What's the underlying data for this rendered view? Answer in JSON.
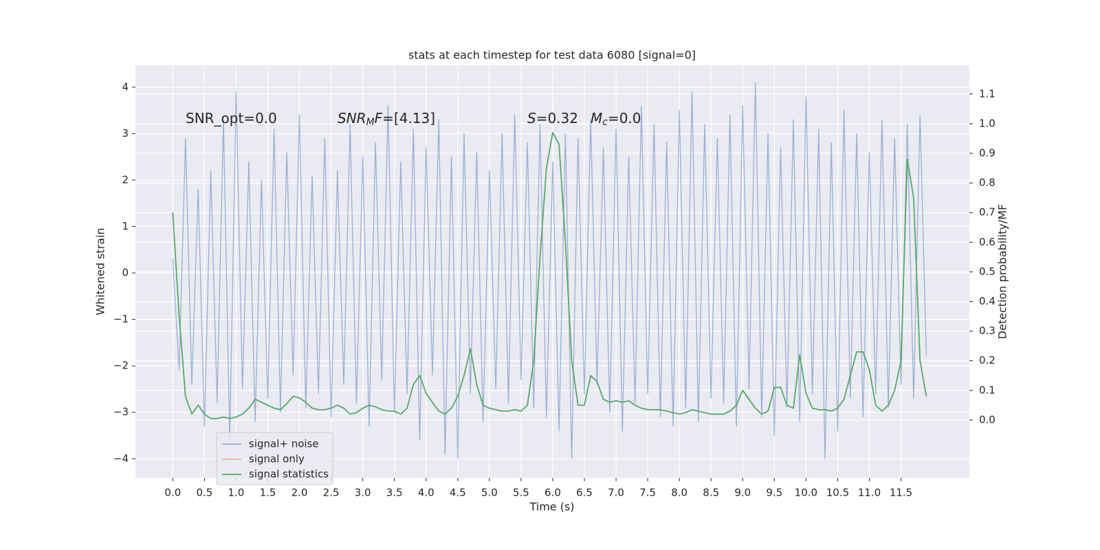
{
  "chart_data": {
    "type": "line",
    "title": "stats at each timestep for test data 6080 [signal=0]",
    "x_label": "Time (s)",
    "y_label": "Whitened strain",
    "y2_label": "Detection probability/MF",
    "annotations": [
      [
        "SNR_opt=0.0"
      ],
      [
        "SNR",
        "M",
        "F",
        "=[4.13]"
      ],
      [
        "S",
        "=0.32"
      ],
      [
        "M",
        "c",
        "=0.0"
      ]
    ],
    "grid": true,
    "legend": "lower left",
    "xlim": [
      -0.59,
      12.58
    ],
    "ylim": [
      -4.41,
      4.47
    ],
    "y2lim": [
      -0.195,
      1.197
    ],
    "xticks": [
      {
        "value": 0,
        "label": "0.0"
      },
      0.5,
      {
        "value": 1,
        "label": "1.0"
      },
      1.5,
      {
        "value": 2,
        "label": "2.0"
      },
      2.5,
      {
        "value": 3,
        "label": "3.0"
      },
      3.5,
      {
        "value": 4,
        "label": "4.0"
      },
      4.5,
      {
        "value": 5,
        "label": "5.0"
      },
      5.5,
      {
        "value": 6,
        "label": "6.0"
      },
      6.5,
      {
        "value": 7,
        "label": "7.0"
      },
      7.5,
      {
        "value": 8,
        "label": "8.0"
      },
      8.5,
      {
        "value": 9,
        "label": "9.0"
      },
      9.5,
      {
        "value": 10,
        "label": "10.0"
      },
      10.5,
      {
        "value": 11,
        "label": "11.0"
      },
      11.5
    ],
    "yticks": [
      {
        "value": -4,
        "label": "−4"
      },
      {
        "value": -3,
        "label": "−3"
      },
      {
        "value": -2,
        "label": "−2"
      },
      {
        "value": -1,
        "label": "−1"
      },
      0,
      1,
      2,
      3,
      4
    ],
    "y2ticks": [
      {
        "value": 0,
        "label": "0.0"
      },
      0.1,
      0.2,
      0.3,
      0.4,
      0.5,
      0.6,
      0.7,
      0.8,
      0.9,
      {
        "value": 1,
        "label": "1.0"
      },
      1.1
    ],
    "x": [
      0.0,
      0.1,
      0.2,
      0.3,
      0.4,
      0.5,
      0.6,
      0.7,
      0.8,
      0.9,
      1.0,
      1.1,
      1.2,
      1.3,
      1.4,
      1.5,
      1.6,
      1.7,
      1.8,
      1.9,
      2.0,
      2.1,
      2.2,
      2.3,
      2.4,
      2.5,
      2.6,
      2.7,
      2.8,
      2.9,
      3.0,
      3.1,
      3.2,
      3.3,
      3.4,
      3.5,
      3.6,
      3.7,
      3.8,
      3.9,
      4.0,
      4.1,
      4.2,
      4.3,
      4.4,
      4.5,
      4.6,
      4.7,
      4.8,
      4.9,
      5.0,
      5.1,
      5.2,
      5.3,
      5.4,
      5.5,
      5.6,
      5.7,
      5.8,
      5.9,
      6.0,
      6.1,
      6.2,
      6.3,
      6.4,
      6.5,
      6.6,
      6.7,
      6.8,
      6.9,
      7.0,
      7.1,
      7.2,
      7.3,
      7.4,
      7.5,
      7.6,
      7.7,
      7.8,
      7.9,
      8.0,
      8.1,
      8.2,
      8.3,
      8.4,
      8.5,
      8.6,
      8.7,
      8.8,
      8.9,
      9.0,
      9.1,
      9.2,
      9.3,
      9.4,
      9.5,
      9.6,
      9.7,
      9.8,
      9.9,
      10.0,
      10.1,
      10.2,
      10.3,
      10.4,
      10.5,
      10.6,
      10.7,
      10.8,
      10.9,
      11.0,
      11.1,
      11.2,
      11.3,
      11.4,
      11.5,
      11.6,
      11.7,
      11.8,
      11.9
    ],
    "series": [
      {
        "name": "signal+ noise",
        "color": "#4c72b0",
        "alpha": 0.5,
        "axis": "y",
        "values": [
          0.3,
          -2.1,
          2.9,
          -2.4,
          1.8,
          -3.3,
          2.2,
          -2.8,
          3.3,
          -3.6,
          3.9,
          -2.5,
          2.4,
          -3.2,
          2.0,
          -2.7,
          3.1,
          -3.0,
          2.6,
          -2.2,
          3.4,
          -2.9,
          2.1,
          -2.6,
          2.9,
          -3.1,
          2.2,
          -2.4,
          3.2,
          -2.8,
          2.5,
          -3.3,
          2.8,
          -2.3,
          3.6,
          -3.0,
          2.4,
          -2.6,
          3.1,
          -3.6,
          2.7,
          -2.2,
          3.3,
          -3.9,
          2.5,
          -4.0,
          3.0,
          -2.6,
          2.6,
          -3.2,
          2.2,
          -2.5,
          3.0,
          -2.8,
          3.4,
          -2.3,
          2.8,
          -2.9,
          3.2,
          -3.1,
          2.4,
          -3.4,
          3.0,
          -4.0,
          2.9,
          -2.6,
          3.3,
          -2.4,
          2.7,
          -3.0,
          3.1,
          -3.4,
          2.5,
          -2.8,
          3.6,
          -2.6,
          3.2,
          -3.1,
          2.8,
          -3.3,
          3.5,
          -2.9,
          3.9,
          -3.2,
          3.2,
          -2.7,
          2.9,
          -2.8,
          3.4,
          -3.3,
          3.6,
          -2.5,
          4.1,
          -3.1,
          3.0,
          -3.5,
          2.7,
          -2.9,
          3.3,
          -3.2,
          3.8,
          -2.6,
          3.1,
          -4.0,
          2.8,
          -3.4,
          3.5,
          -2.7,
          3.0,
          -3.1,
          2.6,
          -2.6,
          3.3,
          -2.9,
          2.9,
          -2.4,
          3.2,
          -2.7,
          3.4,
          -1.8
        ]
      },
      {
        "name": "signal only",
        "color": "#dd8452",
        "alpha": 0.5,
        "axis": "y",
        "values": [
          null,
          null,
          null,
          null,
          null,
          null,
          null,
          null,
          null,
          null,
          null,
          null,
          null,
          null,
          null,
          null,
          null,
          null,
          null,
          null,
          null,
          null,
          null,
          null,
          null,
          null,
          null,
          null,
          null,
          null,
          null,
          null,
          null,
          null,
          null,
          null,
          null,
          null,
          null,
          null,
          null,
          null,
          null,
          null,
          null,
          null,
          null,
          null,
          null,
          null,
          null,
          null,
          null,
          null,
          null,
          null,
          null,
          null,
          null,
          null,
          null,
          null,
          null,
          null,
          null,
          null,
          null,
          null,
          null,
          null,
          null,
          null,
          null,
          null,
          null,
          null,
          null,
          null,
          null,
          null,
          null,
          null,
          null,
          null,
          null,
          null,
          null,
          null,
          null,
          null,
          null,
          null,
          null,
          null,
          null,
          null,
          null,
          null,
          null,
          null,
          null,
          null,
          null,
          null,
          null,
          null,
          null,
          null,
          null,
          null,
          null,
          null,
          null,
          null,
          null,
          null,
          null,
          null,
          null,
          null
        ]
      },
      {
        "name": "signal statistics",
        "color": "#55a868",
        "alpha": 1,
        "axis": "y2",
        "values": [
          0.7,
          0.35,
          0.08,
          0.02,
          0.05,
          0.02,
          0.005,
          0.005,
          0.01,
          0.005,
          0.01,
          0.02,
          0.04,
          0.07,
          0.06,
          0.05,
          0.04,
          0.035,
          0.055,
          0.08,
          0.075,
          0.06,
          0.04,
          0.035,
          0.035,
          0.04,
          0.05,
          0.04,
          0.02,
          0.025,
          0.04,
          0.05,
          0.045,
          0.035,
          0.03,
          0.03,
          0.02,
          0.04,
          0.12,
          0.15,
          0.09,
          0.06,
          0.03,
          0.02,
          0.04,
          0.08,
          0.15,
          0.24,
          0.12,
          0.05,
          0.04,
          0.035,
          0.03,
          0.03,
          0.035,
          0.03,
          0.05,
          0.2,
          0.55,
          0.85,
          0.97,
          0.93,
          0.6,
          0.2,
          0.05,
          0.05,
          0.15,
          0.13,
          0.07,
          0.06,
          0.065,
          0.06,
          0.065,
          0.05,
          0.04,
          0.035,
          0.035,
          0.035,
          0.03,
          0.025,
          0.02,
          0.025,
          0.035,
          0.03,
          0.025,
          0.02,
          0.02,
          0.02,
          0.03,
          0.05,
          0.1,
          0.07,
          0.04,
          0.02,
          0.03,
          0.11,
          0.11,
          0.05,
          0.04,
          0.22,
          0.09,
          0.04,
          0.035,
          0.035,
          0.03,
          0.04,
          0.07,
          0.15,
          0.23,
          0.23,
          0.17,
          0.05,
          0.03,
          0.05,
          0.1,
          0.2,
          0.88,
          0.75,
          0.2,
          0.08
        ]
      }
    ]
  }
}
